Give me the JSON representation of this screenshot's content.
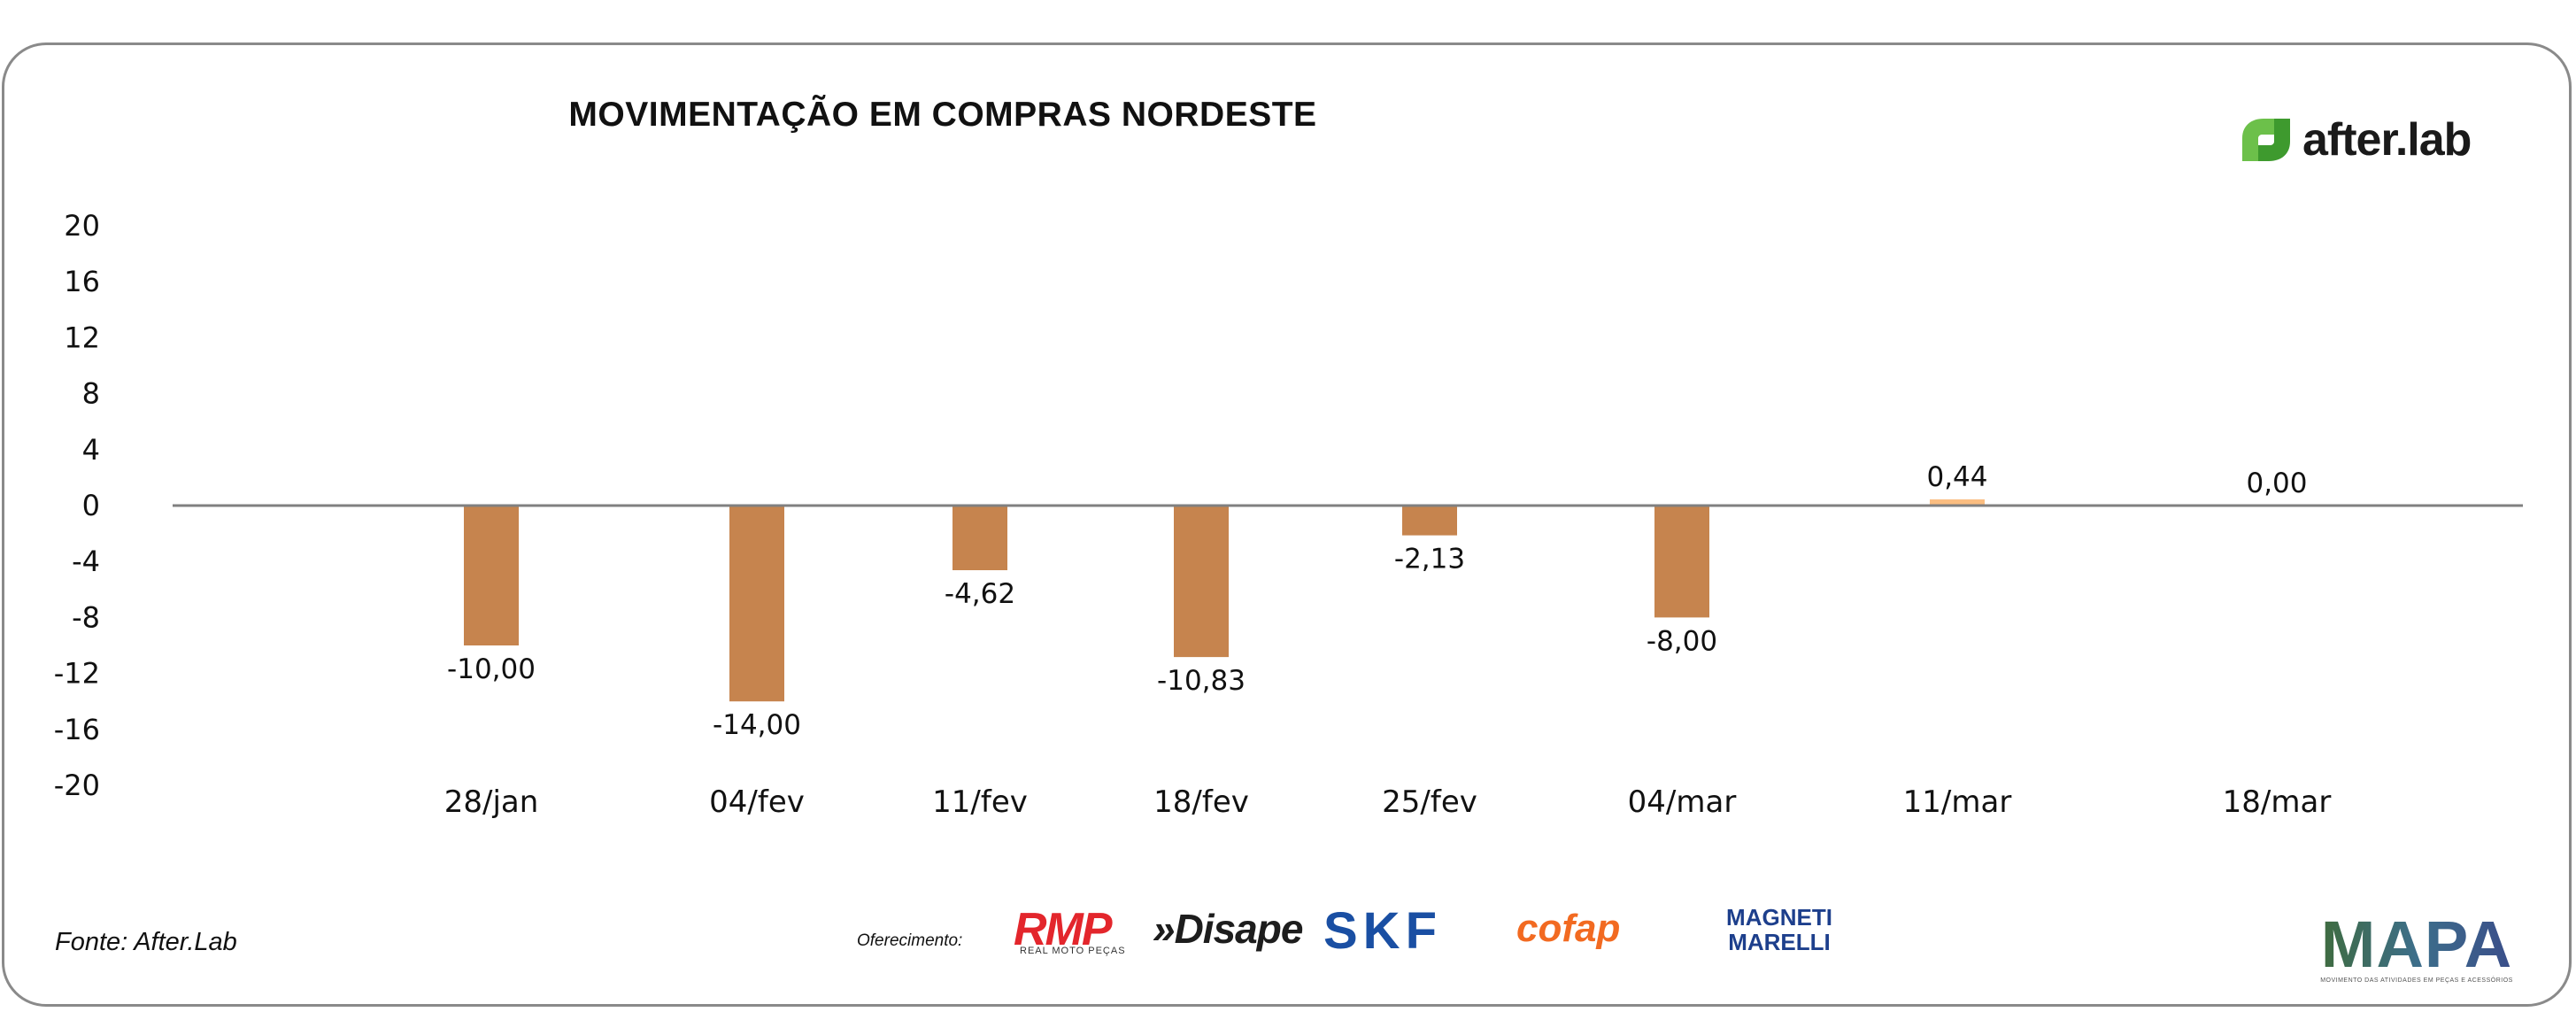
{
  "title": "MOVIMENTAÇÃO EM COMPRAS NORDESTE",
  "brand": {
    "name": "after.lab",
    "icon": "after-lab-logo-icon",
    "color": "#6cc04a"
  },
  "source": "Fonte: After.Lab",
  "sponsors": {
    "label": "Oferecimento:",
    "logos": [
      {
        "name": "RMP",
        "sub": "REAL MOTO PEÇAS",
        "color": "#e3262c"
      },
      {
        "name": "»Disape",
        "color": "#1d1d1d"
      },
      {
        "name": "SKF",
        "color": "#1a4fa3"
      },
      {
        "name": "cofap",
        "color": "#f26a21"
      },
      {
        "name": "MAGNETI MARELLI",
        "color": "#1d3f8c"
      }
    ]
  },
  "mapa": {
    "name": "MAPA",
    "sub": "MOVIMENTO DAS ATIVIDADES EM PEÇAS E ACESSÓRIOS"
  },
  "colors": {
    "negative": "#c6844e",
    "positive": "#fbbd80",
    "zero_line": "#808080"
  },
  "chart_data": {
    "type": "bar",
    "title": "MOVIMENTAÇÃO EM COMPRAS NORDESTE",
    "categories": [
      "28/jan",
      "04/fev",
      "11/fev",
      "18/fev",
      "25/fev",
      "04/mar",
      "11/mar",
      "18/mar"
    ],
    "values": [
      -10.0,
      -14.0,
      -4.62,
      -10.83,
      -2.13,
      -8.0,
      0.44,
      0.0
    ],
    "value_labels": [
      "-10,00",
      "-14,00",
      "-4,62",
      "-10,83",
      "-2,13",
      "-8,00",
      "0,44",
      "0,00"
    ],
    "y_ticks": [
      "20",
      "16",
      "12",
      "8",
      "4",
      "0",
      "-4",
      "-8",
      "-12",
      "-16",
      "-20"
    ],
    "ylim": [
      -20,
      20
    ],
    "xlabel": "",
    "ylabel": "",
    "grid": false,
    "legend": "none"
  }
}
